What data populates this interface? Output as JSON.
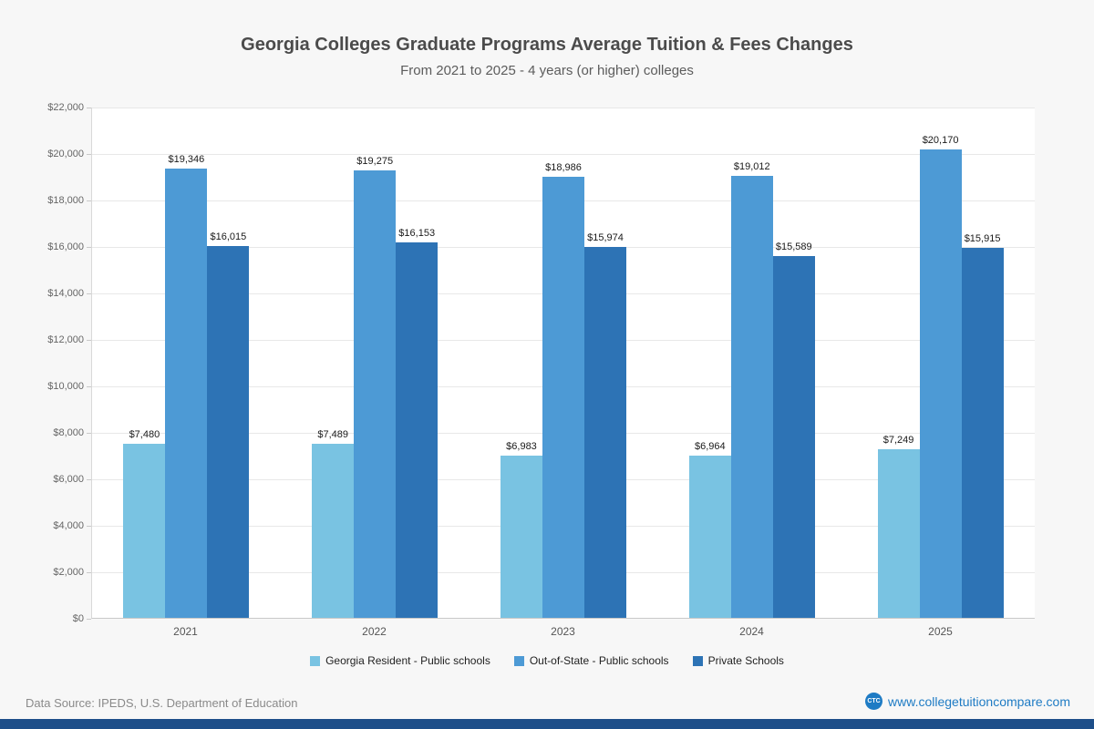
{
  "title": "Georgia Colleges Graduate Programs Average Tuition & Fees Changes",
  "subtitle": "From 2021 to 2025 - 4 years (or higher) colleges",
  "chart_data": {
    "type": "bar",
    "categories": [
      "2021",
      "2022",
      "2023",
      "2024",
      "2025"
    ],
    "series": [
      {
        "name": "Georgia Resident - Public schools",
        "color": "#79c3e2",
        "values": [
          7480,
          7489,
          6983,
          6964,
          7249
        ],
        "labels": [
          "$7,480",
          "$7,489",
          "$6,983",
          "$6,964",
          "$7,249"
        ]
      },
      {
        "name": "Out-of-State - Public schools",
        "color": "#4d9ad5",
        "values": [
          19346,
          19275,
          18986,
          19012,
          20170
        ],
        "labels": [
          "$19,346",
          "$19,275",
          "$18,986",
          "$19,012",
          "$20,170"
        ]
      },
      {
        "name": "Private Schools",
        "color": "#2d73b5",
        "values": [
          16015,
          16153,
          15974,
          15589,
          15915
        ],
        "labels": [
          "$16,015",
          "$16,153",
          "$15,974",
          "$15,589",
          "$15,915"
        ]
      }
    ],
    "ylim": [
      0,
      22000
    ],
    "ytick_step": 2000,
    "ytick_labels": [
      "$0",
      "$2,000",
      "$4,000",
      "$6,000",
      "$8,000",
      "$10,000",
      "$12,000",
      "$14,000",
      "$16,000",
      "$18,000",
      "$20,000",
      "$22,000"
    ],
    "grid": true,
    "legend_position": "bottom"
  },
  "footer": {
    "source": "Data Source: IPEDS, U.S. Department of Education",
    "site": "www.collegetuitioncompare.com",
    "logo_text": "CTC"
  }
}
